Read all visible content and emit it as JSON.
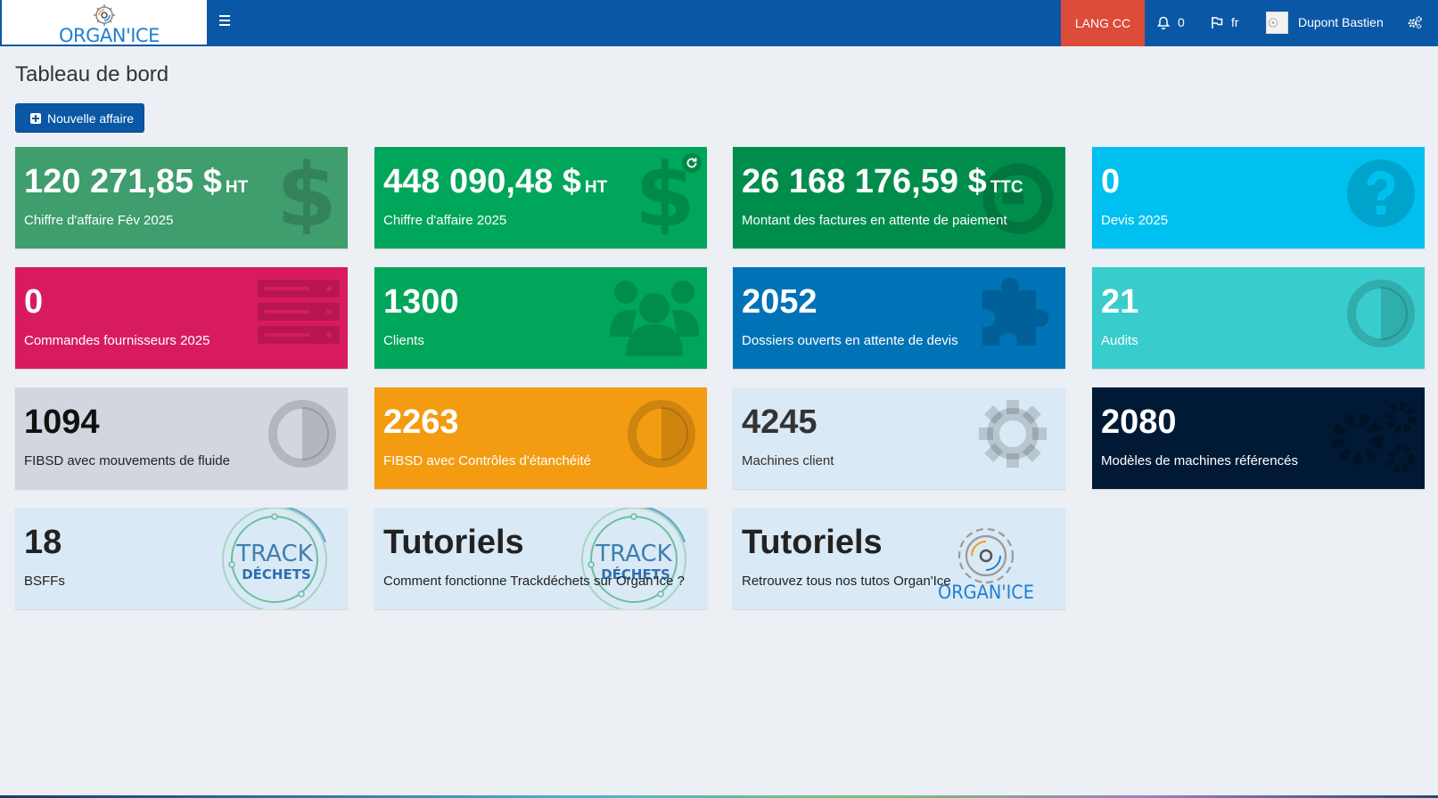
{
  "header": {
    "logo_text": "ORGAN'ICE",
    "lang_button": "LANG CC",
    "notifications_count": "0",
    "language": "fr",
    "user_name": "Dupont Bastien"
  },
  "page": {
    "title": "Tableau de bord",
    "new_button": "Nouvelle affaire"
  },
  "tiles": [
    {
      "value": "120 271,85 $",
      "unit": "HT",
      "label": "Chiffre d'affaire Fév 2025",
      "color": "#3f9d6e",
      "icon": "dollar-icon"
    },
    {
      "value": "448 090,48 $",
      "unit": "HT",
      "label": "Chiffre d'affaire 2025",
      "color": "#00a65a",
      "icon": "dollar-icon"
    },
    {
      "value": "26 168 176,59 $",
      "unit": "TTC",
      "label": "Montant des factures en attente de paiement",
      "color": "#008d4c",
      "icon": "clock-icon"
    },
    {
      "value": "0",
      "unit": "",
      "label": "Devis 2025",
      "color": "#00c0ef",
      "icon": "question-circle-icon"
    },
    {
      "value": "0",
      "unit": "",
      "label": "Commandes fournisseurs 2025",
      "color": "#d81b60",
      "icon": "server-icon"
    },
    {
      "value": "1300",
      "unit": "",
      "label": "Clients",
      "color": "#00a65a",
      "icon": "users-icon"
    },
    {
      "value": "2052",
      "unit": "",
      "label": "Dossiers ouverts en attente de devis",
      "color": "#0073b7",
      "icon": "puzzle-icon"
    },
    {
      "value": "21",
      "unit": "",
      "label": "Audits",
      "color": "#39cccc",
      "icon": "half-circle-icon"
    },
    {
      "value": "1094",
      "unit": "",
      "label": "FIBSD avec mouvements de fluide",
      "color": "#d2d6de",
      "icon": "half-circle-icon"
    },
    {
      "value": "2263",
      "unit": "",
      "label": "FIBSD avec Contrôles d'étanchéité",
      "color": "#f39c12",
      "icon": "half-circle-icon"
    },
    {
      "value": "4245",
      "unit": "",
      "label": "Machines client",
      "color": "#d9e9f5",
      "icon": "gear-icon"
    },
    {
      "value": "2080",
      "unit": "",
      "label": "Modèles de machines référencés",
      "color": "#001a35",
      "icon": "gears-icon"
    },
    {
      "value": "18",
      "unit": "",
      "label": "BSFFs",
      "color": "#d9e9f5",
      "icon": "trackdechets-logo"
    },
    {
      "value": "Tutoriels",
      "unit": "",
      "label": "Comment fonctionne Trackdéchets sur Organ'Ice ?",
      "color": "#d9e9f5",
      "icon": "trackdechets-logo"
    },
    {
      "value": "Tutoriels",
      "unit": "",
      "label": "Retrouvez tous nos tutos Organ'Ice",
      "color": "#d9e9f5",
      "icon": "organice-logo"
    }
  ],
  "logos": {
    "track_line1": "TRACK",
    "track_line2": "DÉCHETS",
    "organice": "ORGAN'ICE"
  }
}
